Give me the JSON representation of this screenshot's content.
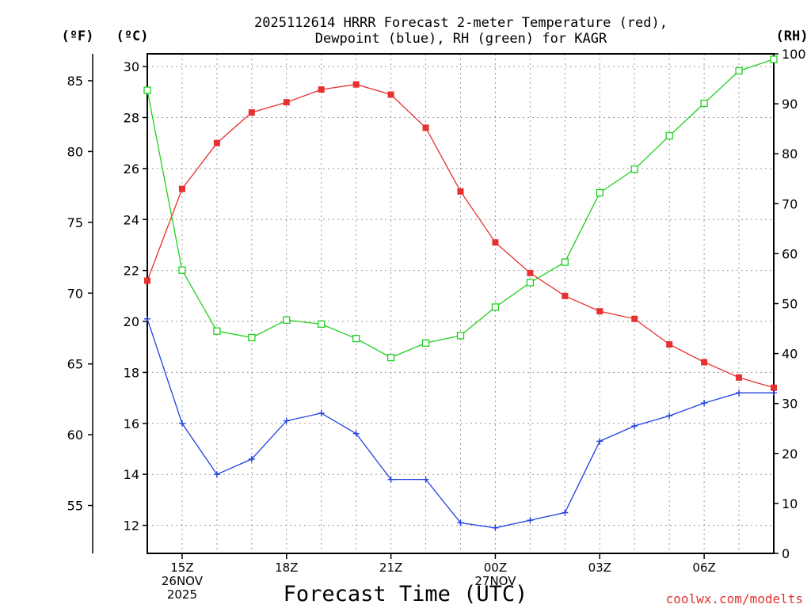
{
  "chart_data": {
    "type": "line",
    "title_line1": "2025112614 HRRR Forecast 2-meter Temperature (red),",
    "title_line2": "Dewpoint (blue), RH (green) for KAGR",
    "xlabel": "Forecast Time (UTC)",
    "credit": "coolwx.com/modelts",
    "units": {
      "fahrenheit": "(ºF)",
      "celsius": "(ºC)",
      "rh": "(RH)"
    },
    "x": [
      14,
      15,
      16,
      17,
      18,
      19,
      20,
      21,
      22,
      23,
      24,
      25,
      26,
      27,
      28,
      29,
      30,
      31,
      32
    ],
    "xlim": [
      14,
      32
    ],
    "x_ticks": [
      {
        "x": 15,
        "lines": [
          "15Z",
          "26NOV",
          "2025"
        ]
      },
      {
        "x": 18,
        "lines": [
          "18Z"
        ]
      },
      {
        "x": 21,
        "lines": [
          "21Z"
        ]
      },
      {
        "x": 24,
        "lines": [
          "00Z",
          "27NOV"
        ]
      },
      {
        "x": 27,
        "lines": [
          "03Z"
        ]
      },
      {
        "x": 30,
        "lines": [
          "06Z"
        ]
      }
    ],
    "celsius_axis": {
      "ylim": [
        10.9,
        30.5
      ],
      "ticks": [
        12,
        14,
        16,
        18,
        20,
        22,
        24,
        26,
        28,
        30
      ]
    },
    "fahrenheit_axis": {
      "ticks": [
        55,
        60,
        65,
        70,
        75,
        80,
        85
      ]
    },
    "rh_axis": {
      "ylim": [
        0,
        100
      ],
      "ticks": [
        0,
        10,
        20,
        30,
        40,
        50,
        60,
        70,
        80,
        90,
        100
      ]
    },
    "series": [
      {
        "name": "Temperature",
        "axis": "celsius",
        "color": "#e83030",
        "marker": "filled-square",
        "values": [
          21.6,
          25.2,
          27.0,
          28.2,
          28.6,
          29.1,
          29.3,
          28.9,
          27.6,
          25.1,
          23.1,
          21.9,
          21.0,
          20.4,
          20.1,
          19.1,
          18.4,
          17.8,
          17.4
        ]
      },
      {
        "name": "Dewpoint",
        "axis": "celsius",
        "color": "#2040e0",
        "marker": "plus",
        "values": [
          20.1,
          16.0,
          14.0,
          14.6,
          16.1,
          16.4,
          15.6,
          13.8,
          13.8,
          12.1,
          11.9,
          12.2,
          12.5,
          15.3,
          15.9,
          16.3,
          16.8,
          17.2,
          17.2
        ]
      },
      {
        "name": "RH",
        "axis": "rh",
        "color": "#20d020",
        "marker": "open-square",
        "values": [
          92.7,
          56.7,
          44.5,
          43.2,
          46.7,
          45.9,
          43.0,
          39.2,
          42.1,
          43.6,
          49.3,
          54.2,
          58.3,
          72.2,
          76.9,
          83.6,
          90.1,
          96.6,
          98.9
        ]
      }
    ]
  }
}
